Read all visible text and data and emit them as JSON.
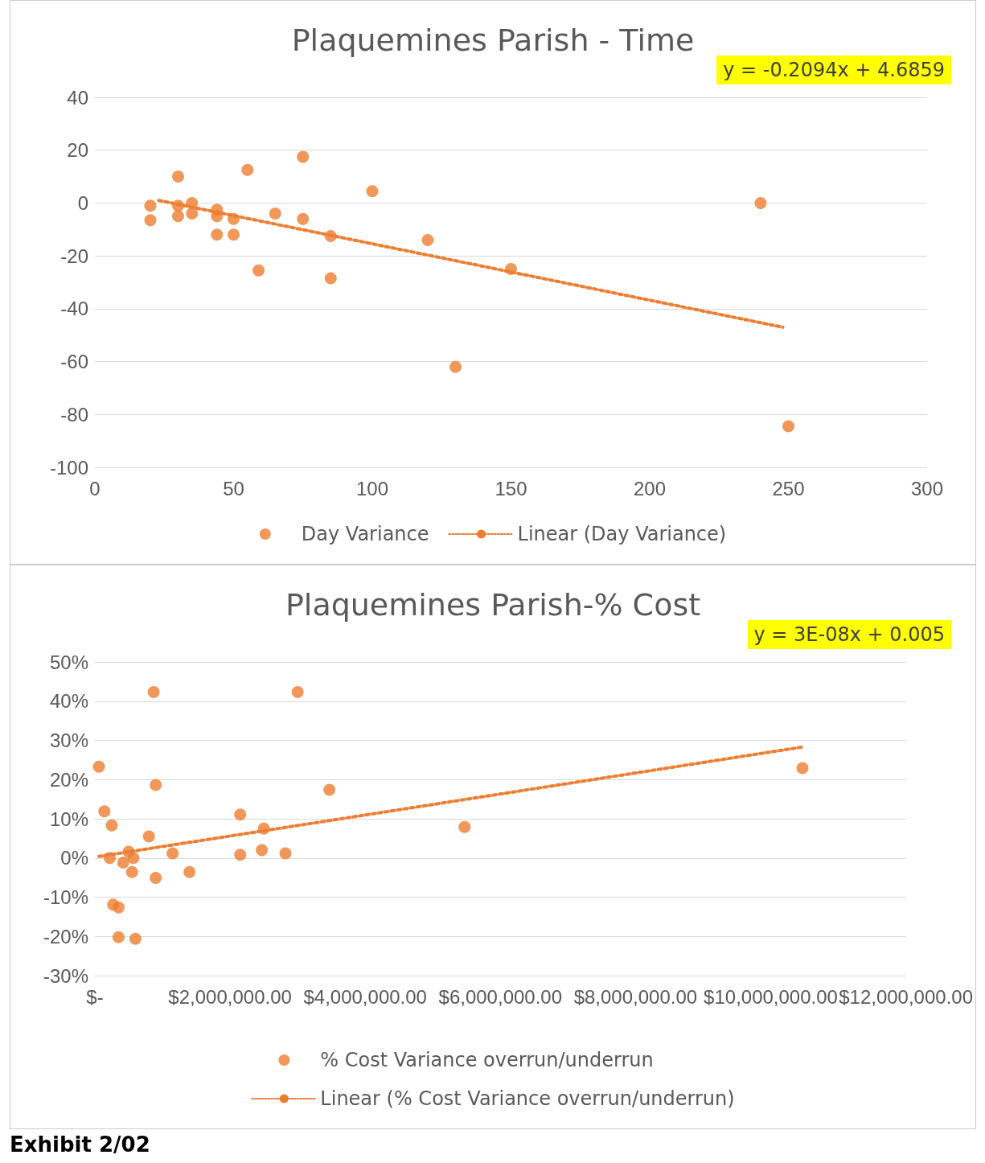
{
  "chart_data": [
    {
      "type": "scatter",
      "title": "Plaquemines Parish - Time",
      "annotations": [
        "y = -0.2094x + 4.6859"
      ],
      "marker": "circle",
      "grid": "y",
      "legend": "bottom",
      "xlim": [
        0,
        300
      ],
      "xticks": [
        0,
        50,
        100,
        150,
        200,
        250,
        300
      ],
      "ylim": [
        -100,
        40
      ],
      "yticks": [
        -100,
        -80,
        -60,
        -40,
        -20,
        0,
        20,
        40
      ],
      "series": [
        {
          "name": "Day Variance",
          "color": "#ed7d31",
          "x": [
            20,
            20,
            30,
            30,
            30,
            35,
            35,
            44,
            44,
            44,
            50,
            50,
            55,
            59,
            65,
            75,
            75,
            85,
            85,
            100,
            120,
            130,
            150,
            240,
            250
          ],
          "values": [
            -1,
            -6.5,
            10,
            -1,
            -5,
            0,
            -4,
            -2.5,
            -5,
            -12,
            -6,
            -12,
            12.5,
            -25.5,
            -4,
            17.5,
            -6,
            -12.5,
            -28.5,
            4.5,
            -14,
            -62,
            -25,
            0,
            -84.5
          ]
        },
        {
          "name": "Linear (Day Variance)",
          "type": "line",
          "marker": "none",
          "line_style": "dotted",
          "color": "#ed7d31",
          "x": [
            23,
            248
          ],
          "values": [
            1,
            -47
          ]
        }
      ]
    },
    {
      "type": "scatter",
      "title": "Plaquemines Parish-% Cost",
      "annotations": [
        "y = 3E-08x + 0.005",
        "Exhibit 2/02"
      ],
      "marker": "circle",
      "grid": "y",
      "legend": "bottom",
      "xlim": [
        0,
        12000000
      ],
      "xticks": [
        {
          "value": 0,
          "label": "$-"
        },
        {
          "value": 2000000,
          "label": "$2,000,000.00"
        },
        {
          "value": 4000000,
          "label": "$4,000,000.00"
        },
        {
          "value": 6000000,
          "label": "$6,000,000.00"
        },
        {
          "value": 8000000,
          "label": "$8,000,000.00"
        },
        {
          "value": 10000000,
          "label": "$10,000,000.00"
        },
        {
          "value": 12000000,
          "label": "$12,000,000.00"
        }
      ],
      "ylim": [
        -30,
        50
      ],
      "yticks": [
        {
          "value": -30,
          "label": "-30%"
        },
        {
          "value": -20,
          "label": "-20%"
        },
        {
          "value": -10,
          "label": "-10%"
        },
        {
          "value": 0,
          "label": "0%"
        },
        {
          "value": 10,
          "label": "10%"
        },
        {
          "value": 20,
          "label": "20%"
        },
        {
          "value": 30,
          "label": "30%"
        },
        {
          "value": 40,
          "label": "40%"
        },
        {
          "value": 50,
          "label": "50%"
        }
      ],
      "series": [
        {
          "name": "% Cost Variance overrun/underrun",
          "color": "#ed7d31",
          "x": [
            60000,
            140000,
            220000,
            250000,
            270000,
            350000,
            350000,
            420000,
            500000,
            550000,
            570000,
            600000,
            800000,
            870000,
            900000,
            900000,
            1150000,
            1400000,
            2150000,
            2150000,
            2470000,
            2500000,
            2820000,
            3000000,
            3470000,
            5470000,
            10470000
          ],
          "values": [
            23.3,
            11.9,
            0,
            8.3,
            -11.9,
            -12.6,
            -20.2,
            -1.2,
            1.6,
            -3.6,
            0,
            -20.6,
            5.5,
            42.3,
            18.6,
            -5.1,
            1.2,
            -3.6,
            0.8,
            11.1,
            2,
            7.5,
            1.2,
            42.3,
            17.4,
            7.9,
            22.9
          ]
        },
        {
          "name": "Linear (% Cost Variance overrun/underrun)",
          "type": "line",
          "marker": "none",
          "line_style": "dotted",
          "color": "#ed7d31",
          "x": [
            60000,
            10470000
          ],
          "values": [
            0.4,
            28.3
          ]
        }
      ]
    }
  ]
}
